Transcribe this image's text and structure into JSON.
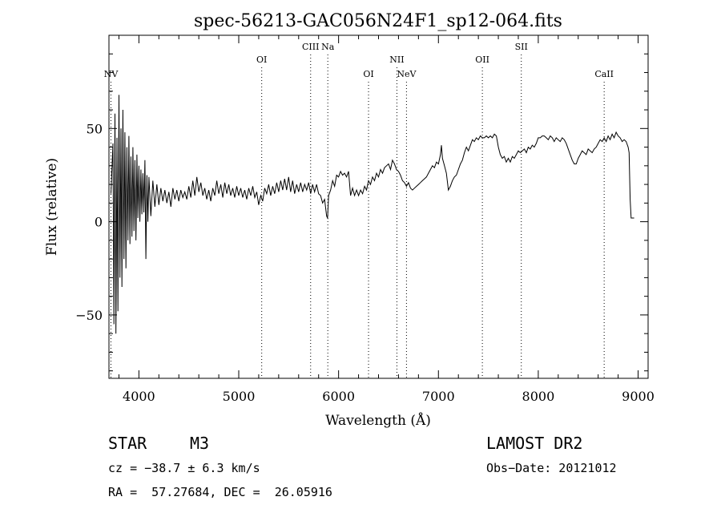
{
  "chart_data": {
    "type": "line",
    "title": "spec-56213-GAC056N24F1_sp12-064.fits",
    "xlabel": "Wavelength (Å)",
    "ylabel": "Flux (relative)",
    "xlim": [
      3700,
      9100
    ],
    "ylim": [
      -84,
      100
    ],
    "x_ticks": [
      4000,
      5000,
      6000,
      7000,
      8000,
      9000
    ],
    "y_ticks": [
      -50,
      0,
      50
    ],
    "x_tick_labels": [
      "4000",
      "5000",
      "6000",
      "7000",
      "8000",
      "9000"
    ],
    "y_tick_labels": [
      "−50",
      "0",
      "50"
    ],
    "line_color": "#000000",
    "grid": false,
    "emission_lines": [
      {
        "label": "NV",
        "wavelength": 3720,
        "row": "low"
      },
      {
        "label": "OI",
        "wavelength": 5230,
        "row": "mid"
      },
      {
        "label": "CIII",
        "wavelength": 5720,
        "row": "high"
      },
      {
        "label": "Na",
        "wavelength": 5892,
        "row": "high"
      },
      {
        "label": "OI",
        "wavelength": 6300,
        "row": "low"
      },
      {
        "label": "NII",
        "wavelength": 6584,
        "row": "mid"
      },
      {
        "label": "NeV",
        "wavelength": 6680,
        "row": "low"
      },
      {
        "label": "OII",
        "wavelength": 7440,
        "row": "mid"
      },
      {
        "label": "SII",
        "wavelength": 7830,
        "row": "high"
      },
      {
        "label": "CaII",
        "wavelength": 8660,
        "row": "low"
      }
    ],
    "series": [
      {
        "values": [
          [
            3720,
            15
          ],
          [
            3740,
            42
          ],
          [
            3750,
            -55
          ],
          [
            3760,
            58
          ],
          [
            3770,
            -60
          ],
          [
            3780,
            45
          ],
          [
            3790,
            -48
          ],
          [
            3800,
            68
          ],
          [
            3810,
            -30
          ],
          [
            3820,
            50
          ],
          [
            3830,
            -35
          ],
          [
            3840,
            60
          ],
          [
            3850,
            -20
          ],
          [
            3860,
            48
          ],
          [
            3870,
            -25
          ],
          [
            3880,
            40
          ],
          [
            3890,
            -10
          ],
          [
            3900,
            46
          ],
          [
            3910,
            -12
          ],
          [
            3920,
            35
          ],
          [
            3930,
            -8
          ],
          [
            3940,
            40
          ],
          [
            3950,
            -5
          ],
          [
            3960,
            33
          ],
          [
            3970,
            -10
          ],
          [
            3980,
            36
          ],
          [
            3990,
            2
          ],
          [
            4000,
            30
          ],
          [
            4010,
            0
          ],
          [
            4020,
            28
          ],
          [
            4030,
            4
          ],
          [
            4040,
            26
          ],
          [
            4050,
            5
          ],
          [
            4060,
            33
          ],
          [
            4070,
            -20
          ],
          [
            4080,
            25
          ],
          [
            4090,
            0
          ],
          [
            4100,
            24
          ],
          [
            4120,
            3
          ],
          [
            4140,
            22
          ],
          [
            4160,
            8
          ],
          [
            4180,
            20
          ],
          [
            4200,
            9
          ],
          [
            4220,
            18
          ],
          [
            4240,
            11
          ],
          [
            4260,
            17
          ],
          [
            4280,
            10
          ],
          [
            4300,
            16
          ],
          [
            4320,
            8
          ],
          [
            4340,
            18
          ],
          [
            4360,
            12
          ],
          [
            4380,
            17
          ],
          [
            4400,
            11
          ],
          [
            4420,
            17
          ],
          [
            4440,
            13
          ],
          [
            4460,
            16
          ],
          [
            4480,
            12
          ],
          [
            4500,
            19
          ],
          [
            4520,
            13
          ],
          [
            4540,
            22
          ],
          [
            4560,
            14
          ],
          [
            4580,
            24
          ],
          [
            4600,
            16
          ],
          [
            4620,
            21
          ],
          [
            4640,
            14
          ],
          [
            4660,
            18
          ],
          [
            4680,
            12
          ],
          [
            4700,
            17
          ],
          [
            4720,
            11
          ],
          [
            4740,
            18
          ],
          [
            4760,
            14
          ],
          [
            4780,
            22
          ],
          [
            4800,
            15
          ],
          [
            4820,
            20
          ],
          [
            4840,
            13
          ],
          [
            4860,
            21
          ],
          [
            4880,
            15
          ],
          [
            4900,
            20
          ],
          [
            4920,
            14
          ],
          [
            4940,
            18
          ],
          [
            4960,
            13
          ],
          [
            4980,
            19
          ],
          [
            5000,
            14
          ],
          [
            5020,
            18
          ],
          [
            5040,
            13
          ],
          [
            5060,
            17
          ],
          [
            5080,
            12
          ],
          [
            5100,
            18
          ],
          [
            5120,
            14
          ],
          [
            5140,
            19
          ],
          [
            5160,
            13
          ],
          [
            5180,
            16
          ],
          [
            5200,
            9
          ],
          [
            5220,
            14
          ],
          [
            5240,
            11
          ],
          [
            5260,
            18
          ],
          [
            5280,
            15
          ],
          [
            5300,
            20
          ],
          [
            5320,
            14
          ],
          [
            5340,
            19
          ],
          [
            5360,
            15
          ],
          [
            5380,
            21
          ],
          [
            5400,
            16
          ],
          [
            5420,
            22
          ],
          [
            5440,
            17
          ],
          [
            5460,
            23
          ],
          [
            5480,
            17
          ],
          [
            5500,
            24
          ],
          [
            5520,
            16
          ],
          [
            5540,
            22
          ],
          [
            5560,
            15
          ],
          [
            5580,
            20
          ],
          [
            5600,
            16
          ],
          [
            5620,
            21
          ],
          [
            5640,
            16
          ],
          [
            5660,
            20
          ],
          [
            5680,
            17
          ],
          [
            5700,
            21
          ],
          [
            5720,
            15
          ],
          [
            5740,
            20
          ],
          [
            5760,
            16
          ],
          [
            5780,
            20
          ],
          [
            5800,
            15
          ],
          [
            5820,
            14
          ],
          [
            5840,
            10
          ],
          [
            5860,
            12
          ],
          [
            5880,
            3
          ],
          [
            5890,
            2
          ],
          [
            5900,
            14
          ],
          [
            5920,
            17
          ],
          [
            5940,
            22
          ],
          [
            5960,
            19
          ],
          [
            5980,
            25
          ],
          [
            6000,
            24
          ],
          [
            6020,
            27
          ],
          [
            6040,
            25
          ],
          [
            6060,
            26
          ],
          [
            6080,
            24
          ],
          [
            6100,
            27
          ],
          [
            6120,
            14
          ],
          [
            6140,
            18
          ],
          [
            6160,
            14
          ],
          [
            6180,
            17
          ],
          [
            6200,
            14
          ],
          [
            6220,
            17
          ],
          [
            6240,
            15
          ],
          [
            6260,
            19
          ],
          [
            6280,
            17
          ],
          [
            6300,
            22
          ],
          [
            6320,
            20
          ],
          [
            6340,
            24
          ],
          [
            6360,
            22
          ],
          [
            6380,
            26
          ],
          [
            6400,
            24
          ],
          [
            6420,
            28
          ],
          [
            6440,
            26
          ],
          [
            6460,
            29
          ],
          [
            6480,
            30
          ],
          [
            6500,
            31
          ],
          [
            6520,
            28
          ],
          [
            6540,
            33
          ],
          [
            6560,
            31
          ],
          [
            6580,
            28
          ],
          [
            6600,
            27
          ],
          [
            6620,
            25
          ],
          [
            6640,
            22
          ],
          [
            6660,
            21
          ],
          [
            6680,
            19
          ],
          [
            6700,
            21
          ],
          [
            6720,
            18
          ],
          [
            6740,
            17
          ],
          [
            6760,
            18
          ],
          [
            6780,
            19
          ],
          [
            6800,
            20
          ],
          [
            6820,
            21
          ],
          [
            6840,
            22
          ],
          [
            6860,
            23
          ],
          [
            6880,
            24
          ],
          [
            6900,
            26
          ],
          [
            6920,
            28
          ],
          [
            6940,
            30
          ],
          [
            6960,
            29
          ],
          [
            6980,
            32
          ],
          [
            7000,
            31
          ],
          [
            7020,
            36
          ],
          [
            7030,
            41
          ],
          [
            7040,
            34
          ],
          [
            7060,
            30
          ],
          [
            7080,
            26
          ],
          [
            7100,
            17
          ],
          [
            7120,
            19
          ],
          [
            7140,
            22
          ],
          [
            7160,
            24
          ],
          [
            7180,
            25
          ],
          [
            7200,
            28
          ],
          [
            7220,
            31
          ],
          [
            7240,
            33
          ],
          [
            7260,
            37
          ],
          [
            7280,
            40
          ],
          [
            7300,
            38
          ],
          [
            7320,
            41
          ],
          [
            7340,
            44
          ],
          [
            7360,
            43
          ],
          [
            7380,
            45
          ],
          [
            7400,
            44
          ],
          [
            7420,
            46
          ],
          [
            7440,
            45
          ],
          [
            7460,
            45
          ],
          [
            7480,
            46
          ],
          [
            7500,
            45
          ],
          [
            7520,
            46
          ],
          [
            7540,
            45
          ],
          [
            7560,
            47
          ],
          [
            7580,
            46
          ],
          [
            7600,
            40
          ],
          [
            7620,
            36
          ],
          [
            7640,
            34
          ],
          [
            7660,
            35
          ],
          [
            7680,
            32
          ],
          [
            7700,
            34
          ],
          [
            7720,
            32
          ],
          [
            7740,
            35
          ],
          [
            7760,
            34
          ],
          [
            7780,
            36
          ],
          [
            7800,
            38
          ],
          [
            7820,
            37
          ],
          [
            7840,
            38
          ],
          [
            7860,
            39
          ],
          [
            7880,
            37
          ],
          [
            7900,
            40
          ],
          [
            7920,
            39
          ],
          [
            7940,
            41
          ],
          [
            7960,
            40
          ],
          [
            7980,
            42
          ],
          [
            8000,
            45
          ],
          [
            8020,
            45
          ],
          [
            8040,
            46
          ],
          [
            8060,
            46
          ],
          [
            8080,
            45
          ],
          [
            8100,
            44
          ],
          [
            8120,
            46
          ],
          [
            8140,
            45
          ],
          [
            8160,
            43
          ],
          [
            8180,
            45
          ],
          [
            8200,
            44
          ],
          [
            8220,
            43
          ],
          [
            8240,
            45
          ],
          [
            8260,
            44
          ],
          [
            8280,
            42
          ],
          [
            8300,
            39
          ],
          [
            8320,
            36
          ],
          [
            8340,
            33
          ],
          [
            8360,
            31
          ],
          [
            8380,
            31
          ],
          [
            8400,
            34
          ],
          [
            8420,
            36
          ],
          [
            8440,
            38
          ],
          [
            8460,
            37
          ],
          [
            8480,
            36
          ],
          [
            8500,
            39
          ],
          [
            8520,
            38
          ],
          [
            8540,
            37
          ],
          [
            8560,
            39
          ],
          [
            8580,
            40
          ],
          [
            8600,
            42
          ],
          [
            8620,
            44
          ],
          [
            8640,
            43
          ],
          [
            8660,
            45
          ],
          [
            8680,
            43
          ],
          [
            8700,
            46
          ],
          [
            8720,
            44
          ],
          [
            8740,
            47
          ],
          [
            8760,
            45
          ],
          [
            8780,
            48
          ],
          [
            8800,
            46
          ],
          [
            8820,
            45
          ],
          [
            8840,
            43
          ],
          [
            8860,
            44
          ],
          [
            8880,
            43
          ],
          [
            8900,
            40
          ],
          [
            8910,
            37
          ],
          [
            8920,
            12
          ],
          [
            8930,
            2
          ],
          [
            8960,
            2
          ]
        ]
      }
    ]
  },
  "info": {
    "object_class": "STAR",
    "subclass": "M3",
    "survey": "LAMOST DR2",
    "cz": "cz = −38.7 ± 6.3 km/s",
    "obs_date": "Obs−Date: 20121012",
    "radec": "RA =  57.27684, DEC =  26.05916"
  }
}
